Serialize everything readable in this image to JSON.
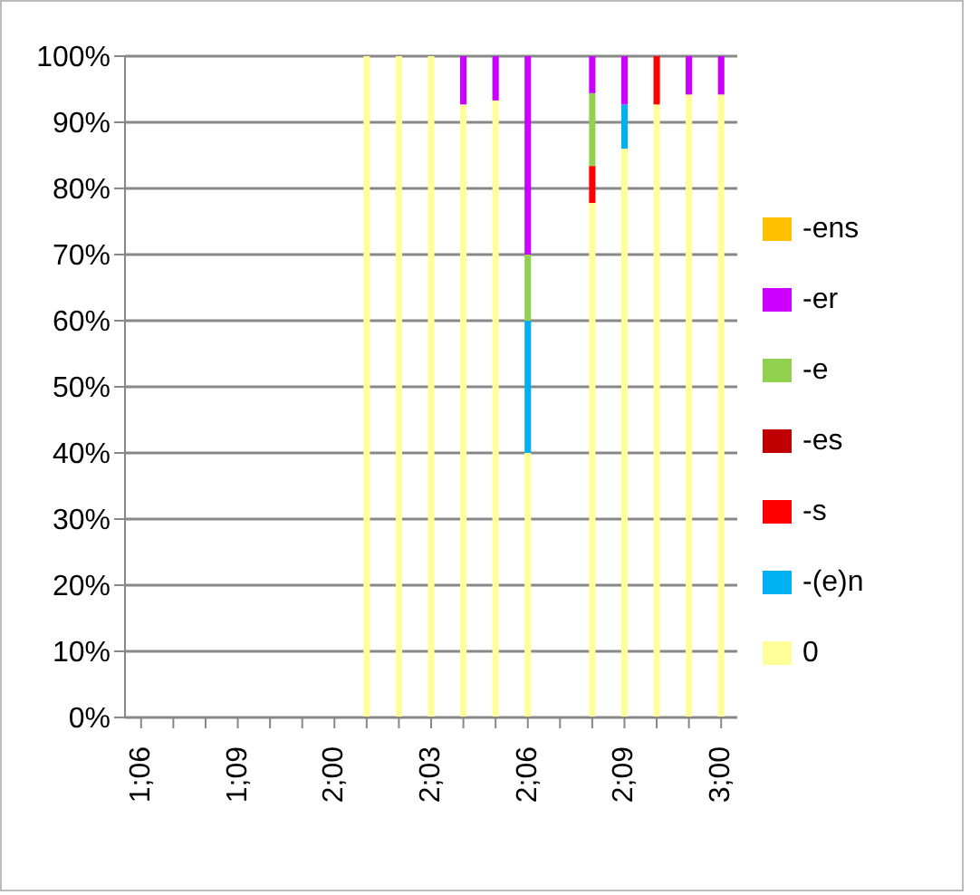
{
  "chart_data": {
    "type": "bar",
    "stacked": true,
    "categories": [
      "1;06",
      null,
      null,
      "1;09",
      null,
      null,
      "2;00",
      null,
      null,
      "2;03",
      null,
      null,
      "2;06",
      null,
      null,
      "2;09",
      null,
      null,
      "3;00"
    ],
    "series": [
      {
        "name": "0",
        "color": "#ffff99",
        "values": [
          null,
          null,
          null,
          null,
          null,
          null,
          null,
          100,
          100,
          100,
          92.7,
          93.3,
          40,
          null,
          77.8,
          86,
          92.7,
          94.2,
          94.2
        ]
      },
      {
        "name": "-(e)n",
        "color": "#00b0f0",
        "values": [
          null,
          null,
          null,
          null,
          null,
          null,
          null,
          null,
          null,
          null,
          null,
          null,
          20,
          null,
          null,
          6.7,
          null,
          null,
          null
        ]
      },
      {
        "name": "-s",
        "color": "#ff0000",
        "values": [
          null,
          null,
          null,
          null,
          null,
          null,
          null,
          null,
          null,
          null,
          null,
          null,
          null,
          null,
          5.6,
          null,
          7.3,
          null,
          null
        ]
      },
      {
        "name": "-es",
        "color": "#c00000",
        "values": [
          null,
          null,
          null,
          null,
          null,
          null,
          null,
          null,
          null,
          null,
          null,
          null,
          null,
          null,
          null,
          null,
          null,
          null,
          null
        ]
      },
      {
        "name": "-e",
        "color": "#92d050",
        "values": [
          null,
          null,
          null,
          null,
          null,
          null,
          null,
          null,
          null,
          null,
          null,
          null,
          10,
          null,
          11,
          null,
          null,
          null,
          null
        ]
      },
      {
        "name": "-er",
        "color": "#cc00ff",
        "values": [
          null,
          null,
          null,
          null,
          null,
          null,
          null,
          null,
          null,
          null,
          7.3,
          6.7,
          30,
          null,
          5.6,
          7.3,
          null,
          5.8,
          5.8
        ]
      },
      {
        "name": "-ens",
        "color": "#ffc000",
        "values": [
          null,
          null,
          null,
          null,
          null,
          null,
          null,
          null,
          null,
          null,
          null,
          null,
          null,
          null,
          null,
          null,
          null,
          null,
          null
        ]
      }
    ],
    "ylim": [
      0,
      100
    ],
    "yticks": [
      {
        "value": 0,
        "label": "0%"
      },
      {
        "value": 10,
        "label": "10%"
      },
      {
        "value": 20,
        "label": "20%"
      },
      {
        "value": 30,
        "label": "30%"
      },
      {
        "value": 40,
        "label": "40%"
      },
      {
        "value": 50,
        "label": "50%"
      },
      {
        "value": 60,
        "label": "60%"
      },
      {
        "value": 70,
        "label": "70%"
      },
      {
        "value": 80,
        "label": "80%"
      },
      {
        "value": 90,
        "label": "90%"
      },
      {
        "value": 100,
        "label": "100%"
      }
    ],
    "grid": "y",
    "legend": "right"
  }
}
